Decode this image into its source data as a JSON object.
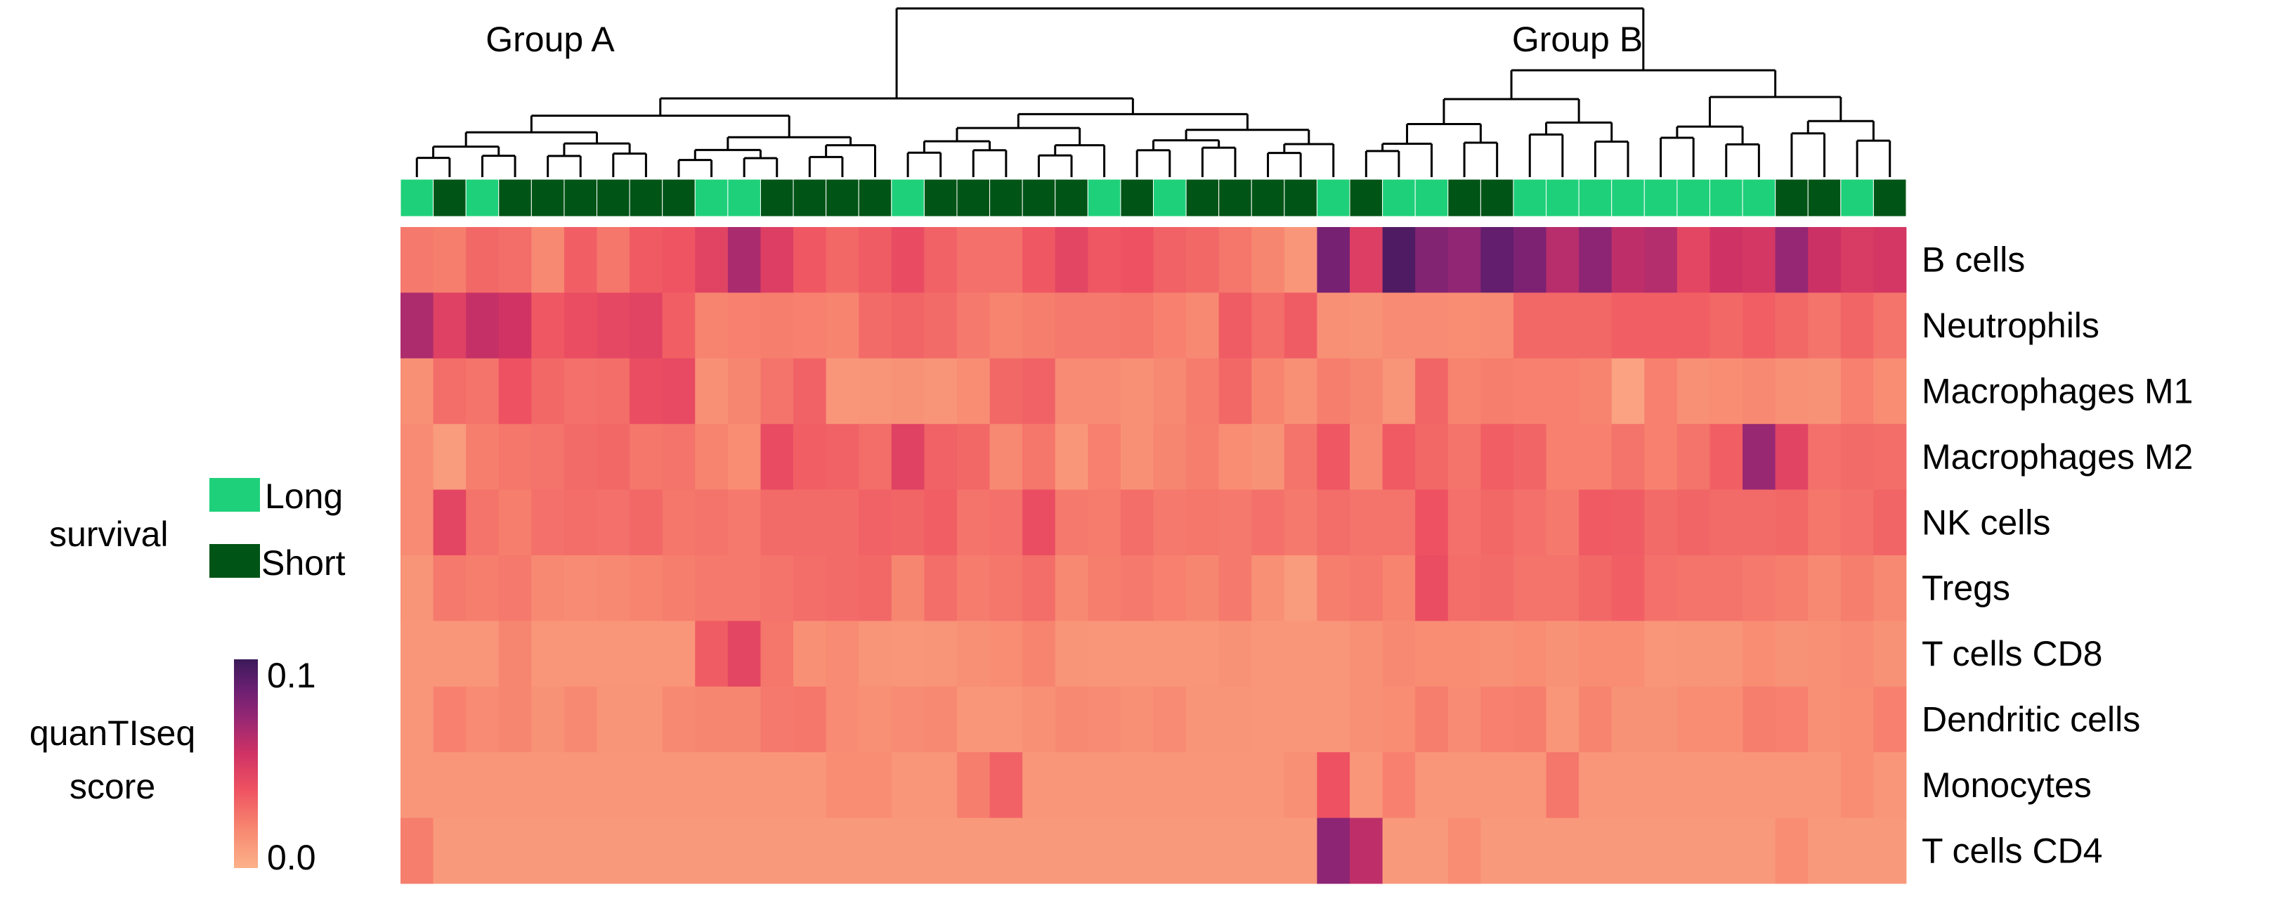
{
  "chart_data": {
    "type": "heatmap",
    "title": "",
    "group_labels": [
      "Group A",
      "Group B"
    ],
    "rows": [
      "B cells",
      "Neutrophils",
      "Macrophages M1",
      "Macrophages M2",
      "NK cells",
      "Tregs",
      "T cells CD8",
      "Dendritic cells",
      "Monocytes",
      "T cells CD4"
    ],
    "survival": [
      "L",
      "S",
      "L",
      "S",
      "S",
      "S",
      "S",
      "S",
      "S",
      "L",
      "L",
      "S",
      "S",
      "S",
      "S",
      "L",
      "S",
      "S",
      "S",
      "S",
      "S",
      "L",
      "S",
      "L",
      "S",
      "S",
      "S",
      "S",
      "L",
      "S",
      "L",
      "L",
      "S",
      "S",
      "L",
      "L",
      "L",
      "L",
      "L",
      "L",
      "L",
      "L",
      "S",
      "S",
      "L",
      "S"
    ],
    "legend": {
      "survival_title": "survival",
      "survival_items": [
        {
          "key": "L",
          "label": "Long",
          "color": "#1fd07a"
        },
        {
          "key": "S",
          "label": "Short",
          "color": "#005416"
        }
      ],
      "score_title_line1": "quanTIseq",
      "score_title_line2": "score",
      "score_max_label": "0.1",
      "score_min_label": "0.0",
      "score_range": [
        0.0,
        0.1
      ]
    },
    "colormap": [
      {
        "v": 0.0,
        "color": "#fbb28a"
      },
      {
        "v": 0.2,
        "color": "#f7846f"
      },
      {
        "v": 0.38,
        "color": "#ee5161"
      },
      {
        "v": 0.55,
        "color": "#cf3264"
      },
      {
        "v": 0.72,
        "color": "#962774"
      },
      {
        "v": 0.86,
        "color": "#6a1f72"
      },
      {
        "v": 1.0,
        "color": "#3b1a59"
      }
    ],
    "values": [
      [
        0.024,
        0.022,
        0.03,
        0.028,
        0.018,
        0.033,
        0.025,
        0.035,
        0.037,
        0.045,
        0.066,
        0.048,
        0.036,
        0.03,
        0.034,
        0.041,
        0.032,
        0.027,
        0.027,
        0.036,
        0.044,
        0.036,
        0.038,
        0.032,
        0.03,
        0.025,
        0.019,
        0.012,
        0.082,
        0.048,
        0.094,
        0.078,
        0.074,
        0.088,
        0.08,
        0.062,
        0.075,
        0.06,
        0.063,
        0.044,
        0.055,
        0.052,
        0.072,
        0.056,
        0.05,
        0.052
      ],
      [
        0.065,
        0.047,
        0.058,
        0.054,
        0.036,
        0.04,
        0.043,
        0.045,
        0.033,
        0.02,
        0.021,
        0.022,
        0.021,
        0.02,
        0.029,
        0.031,
        0.029,
        0.024,
        0.02,
        0.022,
        0.024,
        0.024,
        0.025,
        0.021,
        0.018,
        0.034,
        0.028,
        0.034,
        0.015,
        0.014,
        0.017,
        0.017,
        0.016,
        0.017,
        0.03,
        0.03,
        0.03,
        0.033,
        0.033,
        0.033,
        0.03,
        0.033,
        0.03,
        0.026,
        0.031,
        0.026
      ],
      [
        0.015,
        0.028,
        0.026,
        0.038,
        0.03,
        0.027,
        0.028,
        0.04,
        0.042,
        0.015,
        0.019,
        0.026,
        0.032,
        0.012,
        0.013,
        0.014,
        0.013,
        0.016,
        0.03,
        0.032,
        0.017,
        0.017,
        0.015,
        0.018,
        0.023,
        0.03,
        0.02,
        0.015,
        0.022,
        0.019,
        0.013,
        0.031,
        0.02,
        0.022,
        0.021,
        0.021,
        0.02,
        0.007,
        0.021,
        0.015,
        0.016,
        0.018,
        0.015,
        0.014,
        0.021,
        0.016
      ],
      [
        0.017,
        0.01,
        0.022,
        0.025,
        0.026,
        0.029,
        0.03,
        0.025,
        0.026,
        0.02,
        0.016,
        0.041,
        0.033,
        0.032,
        0.028,
        0.046,
        0.032,
        0.03,
        0.018,
        0.025,
        0.012,
        0.021,
        0.015,
        0.019,
        0.022,
        0.016,
        0.014,
        0.026,
        0.036,
        0.018,
        0.035,
        0.03,
        0.026,
        0.033,
        0.031,
        0.021,
        0.021,
        0.026,
        0.021,
        0.026,
        0.033,
        0.071,
        0.045,
        0.027,
        0.029,
        0.028
      ],
      [
        0.017,
        0.044,
        0.026,
        0.022,
        0.027,
        0.028,
        0.027,
        0.03,
        0.025,
        0.026,
        0.024,
        0.029,
        0.029,
        0.029,
        0.032,
        0.031,
        0.033,
        0.026,
        0.027,
        0.04,
        0.024,
        0.023,
        0.028,
        0.024,
        0.025,
        0.024,
        0.027,
        0.024,
        0.028,
        0.026,
        0.026,
        0.038,
        0.027,
        0.03,
        0.027,
        0.024,
        0.035,
        0.034,
        0.029,
        0.031,
        0.029,
        0.029,
        0.03,
        0.025,
        0.027,
        0.031
      ],
      [
        0.013,
        0.024,
        0.022,
        0.024,
        0.018,
        0.017,
        0.018,
        0.02,
        0.022,
        0.024,
        0.024,
        0.026,
        0.028,
        0.029,
        0.03,
        0.019,
        0.028,
        0.023,
        0.025,
        0.028,
        0.018,
        0.022,
        0.024,
        0.021,
        0.019,
        0.024,
        0.015,
        0.01,
        0.022,
        0.024,
        0.02,
        0.04,
        0.028,
        0.029,
        0.026,
        0.026,
        0.03,
        0.033,
        0.027,
        0.026,
        0.026,
        0.024,
        0.022,
        0.018,
        0.022,
        0.018
      ],
      [
        0.012,
        0.012,
        0.012,
        0.019,
        0.012,
        0.012,
        0.012,
        0.012,
        0.012,
        0.034,
        0.044,
        0.025,
        0.015,
        0.017,
        0.013,
        0.012,
        0.013,
        0.015,
        0.016,
        0.02,
        0.013,
        0.012,
        0.012,
        0.012,
        0.012,
        0.014,
        0.012,
        0.012,
        0.012,
        0.015,
        0.018,
        0.016,
        0.016,
        0.015,
        0.016,
        0.014,
        0.016,
        0.016,
        0.012,
        0.013,
        0.013,
        0.016,
        0.014,
        0.015,
        0.017,
        0.014
      ],
      [
        0.012,
        0.021,
        0.017,
        0.019,
        0.014,
        0.018,
        0.013,
        0.013,
        0.018,
        0.019,
        0.019,
        0.024,
        0.025,
        0.017,
        0.015,
        0.017,
        0.018,
        0.012,
        0.012,
        0.015,
        0.018,
        0.017,
        0.015,
        0.017,
        0.013,
        0.013,
        0.012,
        0.012,
        0.012,
        0.015,
        0.016,
        0.022,
        0.017,
        0.021,
        0.022,
        0.012,
        0.02,
        0.014,
        0.014,
        0.016,
        0.016,
        0.022,
        0.021,
        0.015,
        0.016,
        0.021
      ],
      [
        0.012,
        0.012,
        0.012,
        0.012,
        0.012,
        0.012,
        0.012,
        0.012,
        0.012,
        0.012,
        0.012,
        0.012,
        0.012,
        0.016,
        0.016,
        0.012,
        0.012,
        0.022,
        0.032,
        0.012,
        0.012,
        0.012,
        0.012,
        0.012,
        0.012,
        0.012,
        0.012,
        0.015,
        0.038,
        0.012,
        0.021,
        0.012,
        0.012,
        0.012,
        0.012,
        0.025,
        0.012,
        0.012,
        0.012,
        0.012,
        0.012,
        0.012,
        0.012,
        0.012,
        0.016,
        0.012
      ],
      [
        0.022,
        0.011,
        0.011,
        0.011,
        0.011,
        0.011,
        0.011,
        0.011,
        0.011,
        0.011,
        0.011,
        0.011,
        0.011,
        0.011,
        0.011,
        0.011,
        0.011,
        0.011,
        0.011,
        0.011,
        0.011,
        0.011,
        0.011,
        0.011,
        0.011,
        0.011,
        0.011,
        0.011,
        0.075,
        0.06,
        0.011,
        0.011,
        0.016,
        0.011,
        0.011,
        0.011,
        0.011,
        0.011,
        0.011,
        0.011,
        0.011,
        0.011,
        0.016,
        0.011,
        0.011,
        0.011
      ]
    ]
  }
}
